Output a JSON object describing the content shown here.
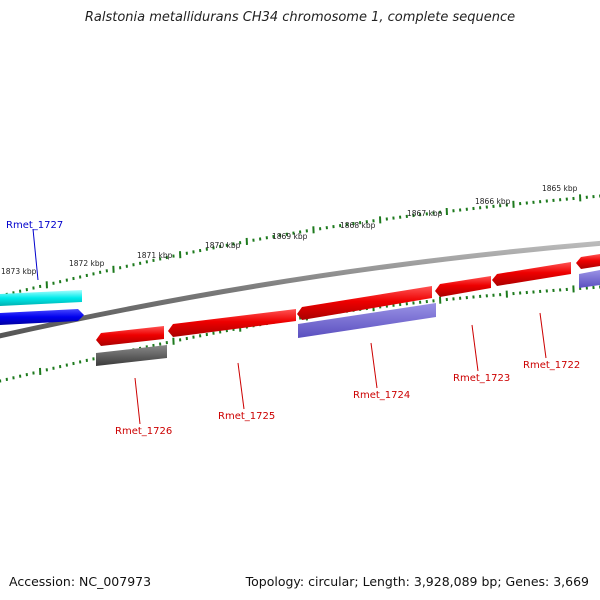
{
  "title": "Ralstonia metallidurans CH34 chromosome 1, complete sequence",
  "accession_text": "Accession: NC_007973",
  "summary_text": "Topology: circular; Length: 3,928,089 bp; Genes: 3,669",
  "colors": {
    "backbone": "#7a7a7a",
    "tick": "#1d7a1d",
    "label_red": "#cc0000",
    "label_blue": "#0000cc"
  },
  "tick_labels": [
    "1873 kbp",
    "1872 kbp",
    "1871 kbp",
    "1870 kbp",
    "1869 kbp",
    "1868 kbp",
    "1867 kbp",
    "1866 kbp",
    "1865 kbp"
  ],
  "genes": [
    {
      "label": "Rmet_1727",
      "label_color": "blue",
      "feature_color": "cyan"
    },
    {
      "label": "Rmet_1727",
      "label_color": "blue",
      "feature_color": "blue"
    },
    {
      "label": "Rmet_1726",
      "label_color": "red",
      "feature_color": "red"
    },
    {
      "label": "Rmet_1726",
      "label_color": "red",
      "feature_color": "gray"
    },
    {
      "label": "Rmet_1725",
      "label_color": "red",
      "feature_color": "red"
    },
    {
      "label": "Rmet_1724",
      "label_color": "red",
      "feature_color": "red"
    },
    {
      "label": "Rmet_1724",
      "label_color": "red",
      "feature_color": "purple"
    },
    {
      "label": "Rmet_1723",
      "label_color": "red",
      "feature_color": "red"
    },
    {
      "label": "Rmet_1722",
      "label_color": "red",
      "feature_color": "red"
    },
    {
      "label": "Rmet_1722",
      "label_color": "red",
      "feature_color": "purple"
    }
  ]
}
